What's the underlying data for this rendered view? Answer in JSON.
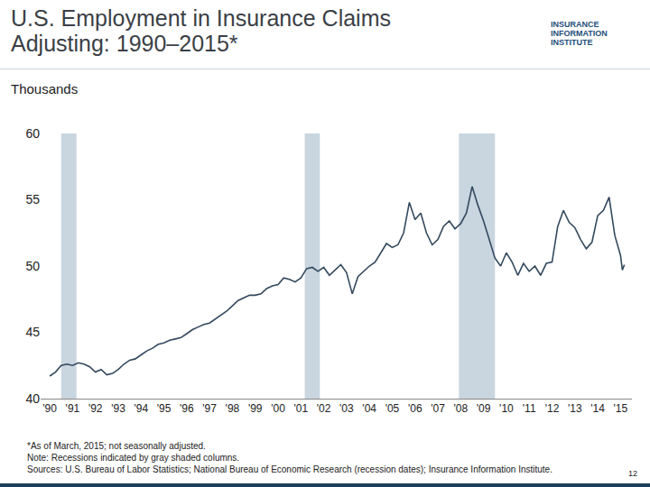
{
  "chart_data": {
    "type": "line",
    "title": "U.S. Employment in Insurance Claims Adjusting: 1990–2015*",
    "y_label": "Thousands",
    "logo": "INSURANCE INFORMATION INSTITUTE",
    "notes": [
      "*As of March, 2015; not seasonally adjusted.",
      "Note: Recessions indicated by gray shaded columns.",
      "Sources: U.S. Bureau of Labor Statistics; National Bureau of Economic Research (recession dates); Insurance Information Institute."
    ],
    "page": 12,
    "color": "#34495e",
    "grid": false,
    "recessions": [
      [
        1990.5,
        1991.17
      ],
      [
        2001.17,
        2001.83
      ],
      [
        2007.92,
        2009.5
      ]
    ],
    "recession_color": "#c9d5df",
    "x": [
      1990,
      1990.25,
      1990.5,
      1990.75,
      1991,
      1991.25,
      1991.5,
      1991.75,
      1992,
      1992.25,
      1992.5,
      1992.75,
      1993,
      1993.25,
      1993.5,
      1993.75,
      1994,
      1994.25,
      1994.5,
      1994.75,
      1995,
      1995.25,
      1995.5,
      1995.75,
      1996,
      1996.25,
      1996.5,
      1996.75,
      1997,
      1997.25,
      1997.5,
      1997.75,
      1998,
      1998.25,
      1998.5,
      1998.75,
      1999,
      1999.25,
      1999.5,
      1999.75,
      2000,
      2000.25,
      2000.5,
      2000.75,
      2001,
      2001.25,
      2001.5,
      2001.75,
      2002,
      2002.25,
      2002.5,
      2002.75,
      2003,
      2003.25,
      2003.5,
      2003.75,
      2004,
      2004.25,
      2004.5,
      2004.75,
      2005,
      2005.25,
      2005.5,
      2005.75,
      2006,
      2006.25,
      2006.5,
      2006.75,
      2007,
      2007.25,
      2007.5,
      2007.75,
      2008,
      2008.25,
      2008.5,
      2008.75,
      2009,
      2009.25,
      2009.5,
      2009.75,
      2010,
      2010.25,
      2010.5,
      2010.75,
      2011,
      2011.25,
      2011.5,
      2011.75,
      2012,
      2012.25,
      2012.5,
      2012.75,
      2013,
      2013.25,
      2013.5,
      2013.75,
      2014,
      2014.25,
      2014.5,
      2014.75,
      2015,
      2015.08,
      2015.17
    ],
    "values": [
      41.7,
      42.0,
      42.5,
      42.6,
      42.5,
      42.7,
      42.6,
      42.4,
      42.0,
      42.2,
      41.8,
      41.9,
      42.2,
      42.6,
      42.9,
      43.0,
      43.3,
      43.6,
      43.8,
      44.1,
      44.2,
      44.4,
      44.5,
      44.6,
      44.9,
      45.2,
      45.4,
      45.6,
      45.7,
      46.0,
      46.3,
      46.6,
      47.0,
      47.4,
      47.6,
      47.8,
      47.8,
      47.9,
      48.3,
      48.5,
      48.6,
      49.1,
      49.0,
      48.8,
      49.1,
      49.8,
      49.9,
      49.6,
      49.9,
      49.3,
      49.7,
      50.1,
      49.5,
      47.9,
      49.2,
      49.6,
      50.0,
      50.3,
      51.0,
      51.7,
      51.4,
      51.6,
      52.5,
      54.8,
      53.5,
      54.0,
      52.5,
      51.6,
      52.0,
      53.0,
      53.4,
      52.8,
      53.2,
      54.0,
      56.0,
      54.6,
      53.4,
      52.0,
      50.6,
      50.0,
      51.0,
      50.3,
      49.3,
      50.2,
      49.6,
      50.0,
      49.3,
      50.2,
      50.3,
      53.0,
      54.2,
      53.3,
      52.9,
      52.0,
      51.3,
      51.8,
      53.8,
      54.2,
      55.2,
      52.3,
      50.8,
      49.7,
      50.1
    ],
    "xlim": [
      1989.6,
      2015.5
    ],
    "xticks": [
      {
        "value": 1990,
        "label": "'90"
      },
      {
        "value": 1991,
        "label": "'91"
      },
      {
        "value": 1992,
        "label": "'92"
      },
      {
        "value": 1993,
        "label": "'93"
      },
      {
        "value": 1994,
        "label": "'94"
      },
      {
        "value": 1995,
        "label": "'95"
      },
      {
        "value": 1996,
        "label": "'96"
      },
      {
        "value": 1997,
        "label": "'97"
      },
      {
        "value": 1998,
        "label": "'98"
      },
      {
        "value": 1999,
        "label": "'99"
      },
      {
        "value": 2000,
        "label": "'00"
      },
      {
        "value": 2001,
        "label": "'01"
      },
      {
        "value": 2002,
        "label": "'02"
      },
      {
        "value": 2003,
        "label": "'03"
      },
      {
        "value": 2004,
        "label": "'04"
      },
      {
        "value": 2005,
        "label": "'05"
      },
      {
        "value": 2006,
        "label": "'06"
      },
      {
        "value": 2007,
        "label": "'07"
      },
      {
        "value": 2008,
        "label": "'08"
      },
      {
        "value": 2009,
        "label": "'09"
      },
      {
        "value": 2010,
        "label": "'10"
      },
      {
        "value": 2011,
        "label": "'11"
      },
      {
        "value": 2012,
        "label": "'12"
      },
      {
        "value": 2013,
        "label": "'13"
      },
      {
        "value": 2014,
        "label": "'14"
      },
      {
        "value": 2015,
        "label": "'15"
      }
    ],
    "ylim": [
      40,
      60
    ],
    "yticks": [
      40,
      45,
      50,
      55,
      60
    ]
  }
}
